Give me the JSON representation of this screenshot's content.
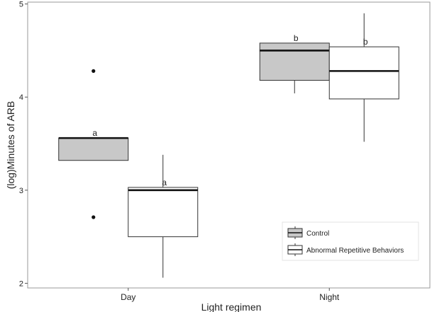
{
  "chart_data": {
    "type": "boxplot",
    "title": "",
    "xlabel": "Light regimen",
    "ylabel": "(log)Minutes of ARB",
    "ylim": [
      1.95,
      5.02
    ],
    "yticks": [
      2,
      3,
      4,
      5
    ],
    "categories": [
      "Day",
      "Night"
    ],
    "grid": false,
    "legend_position": "bottom-right",
    "series": [
      {
        "name": "Control",
        "color": "#c8c8c8",
        "boxes": [
          {
            "category": "Day",
            "q1": 3.32,
            "median": 3.56,
            "q3": 3.56,
            "whisker_low": 3.32,
            "whisker_high": 3.56,
            "outliers": [
              4.28,
              2.71
            ],
            "label": "a"
          },
          {
            "category": "Night",
            "q1": 4.18,
            "median": 4.5,
            "q3": 4.58,
            "whisker_low": 4.04,
            "whisker_high": 4.58,
            "outliers": [],
            "label": "b"
          }
        ]
      },
      {
        "name": "Abnormal Repetitive Behaviors",
        "color": "#ffffff",
        "boxes": [
          {
            "category": "Day",
            "q1": 2.5,
            "median": 3.0,
            "q3": 3.03,
            "whisker_low": 2.06,
            "whisker_high": 3.38,
            "outliers": [],
            "label": "a"
          },
          {
            "category": "Night",
            "q1": 3.98,
            "median": 4.28,
            "q3": 4.54,
            "whisker_low": 3.52,
            "whisker_high": 4.9,
            "outliers": [],
            "label": "b"
          }
        ]
      }
    ]
  }
}
